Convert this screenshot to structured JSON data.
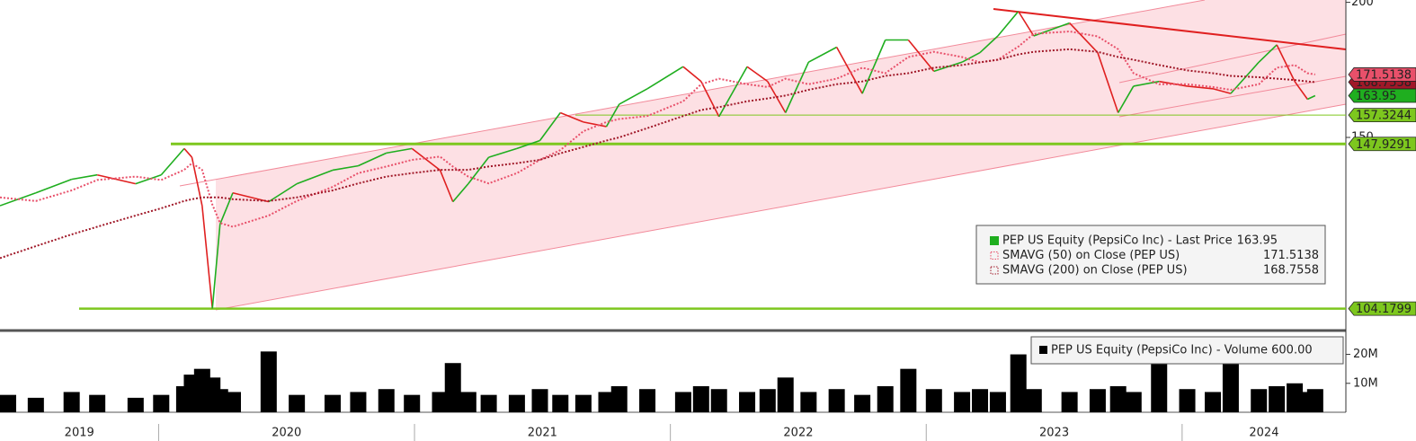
{
  "chart_data": [
    {
      "type": "line",
      "log_scale": true,
      "x": [
        2019.38,
        2019.52,
        2019.66,
        2019.76,
        2019.91,
        2020.01,
        2020.1,
        2020.13,
        2020.17,
        2020.21,
        2020.24,
        2020.29,
        2020.43,
        2020.54,
        2020.68,
        2020.78,
        2020.89,
        2020.99,
        2021.1,
        2021.15,
        2021.21,
        2021.29,
        2021.4,
        2021.49,
        2021.57,
        2021.66,
        2021.75,
        2021.8,
        2021.91,
        2022.05,
        2022.12,
        2022.19,
        2022.3,
        2022.38,
        2022.45,
        2022.54,
        2022.65,
        2022.75,
        2022.84,
        2022.93,
        2023.03,
        2023.14,
        2023.21,
        2023.28,
        2023.36,
        2023.42,
        2023.56,
        2023.67,
        2023.75,
        2023.81,
        2023.91,
        2024.02,
        2024.12,
        2024.19,
        2024.3,
        2024.37,
        2024.44,
        2024.49,
        2024.52
      ],
      "series": [
        {
          "name": "PEP US Equity (PepsiCo Inc) - Last Price",
          "color": "#1fae1f",
          "down_color": "#e02020",
          "values": [
            129.7,
            133.3,
            137.2,
            138.5,
            135.9,
            138.5,
            146.5,
            143.8,
            129.7,
            104.2,
            124.7,
            133.3,
            130.8,
            135.9,
            139.9,
            141.2,
            145.1,
            146.5,
            139.9,
            130.8,
            135.9,
            143.8,
            146.5,
            149.0,
            158.1,
            155.0,
            153.5,
            161.0,
            166.4,
            174.4,
            169.0,
            156.8,
            174.4,
            169.0,
            158.1,
            176.1,
            181.8,
            164.7,
            184.6,
            184.6,
            172.7,
            176.1,
            179.7,
            186.2,
            196.2,
            186.2,
            191.4,
            179.7,
            158.1,
            167.3,
            169.0,
            167.3,
            166.4,
            164.7,
            176.1,
            182.7,
            169.0,
            162.7,
            163.95
          ]
        },
        {
          "name": "SMAVG (50)  on Close (PEP US)",
          "color": "#e8506a",
          "style": "dotted",
          "values": [
            132,
            131,
            134,
            137,
            138,
            137,
            140,
            142,
            140,
            130,
            125,
            124,
            127,
            131,
            135,
            139,
            141,
            143,
            144,
            141,
            138,
            136,
            139,
            143,
            146,
            152,
            155,
            156,
            157,
            162,
            168,
            170,
            168,
            167,
            170,
            168,
            170,
            174,
            172,
            178,
            180,
            178,
            176,
            177,
            182,
            187,
            188,
            186,
            181,
            172,
            168,
            168,
            167,
            166,
            168,
            174,
            175,
            172,
            171.5138
          ]
        },
        {
          "name": "SMAVG (200)  on Close (PEP US)",
          "color": "#a01828",
          "style": "dotted",
          "values": [
            116,
            119,
            122,
            124,
            127,
            129,
            131,
            131.5,
            132,
            132,
            132,
            131.5,
            131,
            132,
            134,
            136,
            138,
            139,
            140,
            140,
            140,
            141,
            142,
            143,
            145,
            147,
            149,
            150,
            153,
            157,
            159,
            160,
            162,
            163,
            164,
            166,
            168,
            169,
            171,
            172,
            174,
            175,
            176,
            177,
            179,
            180,
            181,
            180,
            178,
            177,
            175,
            173,
            172,
            171,
            170.5,
            170,
            169.5,
            169,
            168.7558
          ]
        }
      ],
      "hlines": [
        {
          "value": 157.3244,
          "color": "#7dc71e",
          "width": 1
        },
        {
          "value": 147.9291,
          "color": "#7dc71e",
          "width": 3
        },
        {
          "value": 104.1799,
          "color": "#7dc71e",
          "width": 2.5
        }
      ],
      "xlim": [
        2019.38,
        2024.64
      ],
      "xticks": [
        2019,
        2020,
        2021,
        2022,
        2023,
        2024
      ],
      "ylim": [
        100,
        201
      ],
      "yticks": [
        150,
        200
      ]
    },
    {
      "type": "bar",
      "x": [
        2019.38,
        2019.52,
        2019.66,
        2019.76,
        2019.91,
        2020.01,
        2020.1,
        2020.13,
        2020.17,
        2020.21,
        2020.24,
        2020.29,
        2020.43,
        2020.54,
        2020.68,
        2020.78,
        2020.89,
        2020.99,
        2021.1,
        2021.15,
        2021.21,
        2021.29,
        2021.4,
        2021.49,
        2021.57,
        2021.66,
        2021.75,
        2021.8,
        2021.91,
        2022.05,
        2022.12,
        2022.19,
        2022.3,
        2022.38,
        2022.45,
        2022.54,
        2022.65,
        2022.75,
        2022.84,
        2022.93,
        2023.03,
        2023.14,
        2023.21,
        2023.28,
        2023.36,
        2023.42,
        2023.56,
        2023.67,
        2023.75,
        2023.81,
        2023.91,
        2024.02,
        2024.12,
        2024.19,
        2024.3,
        2024.37,
        2024.44,
        2024.49,
        2024.52
      ],
      "series": [
        {
          "name": "PEP US Equity (PepsiCo Inc) - Volume 600.00",
          "color": "#000000",
          "values": [
            6,
            5,
            7,
            6,
            5,
            6,
            9,
            13,
            15,
            12,
            8,
            7,
            21,
            6,
            6,
            7,
            8,
            6,
            7,
            17,
            7,
            6,
            6,
            8,
            6,
            6,
            7,
            9,
            8,
            7,
            9,
            8,
            7,
            8,
            12,
            7,
            8,
            6,
            9,
            15,
            8,
            7,
            8,
            7,
            20,
            8,
            7,
            8,
            9,
            7,
            18,
            8,
            7,
            20,
            8,
            9,
            10,
            7,
            8
          ]
        }
      ],
      "xlim": [
        2019.38,
        2024.64
      ],
      "ylim": [
        0,
        27
      ],
      "yticks": [
        {
          "value": 10,
          "label": "10M"
        },
        {
          "value": 20,
          "label": "20M"
        }
      ]
    }
  ]
}
